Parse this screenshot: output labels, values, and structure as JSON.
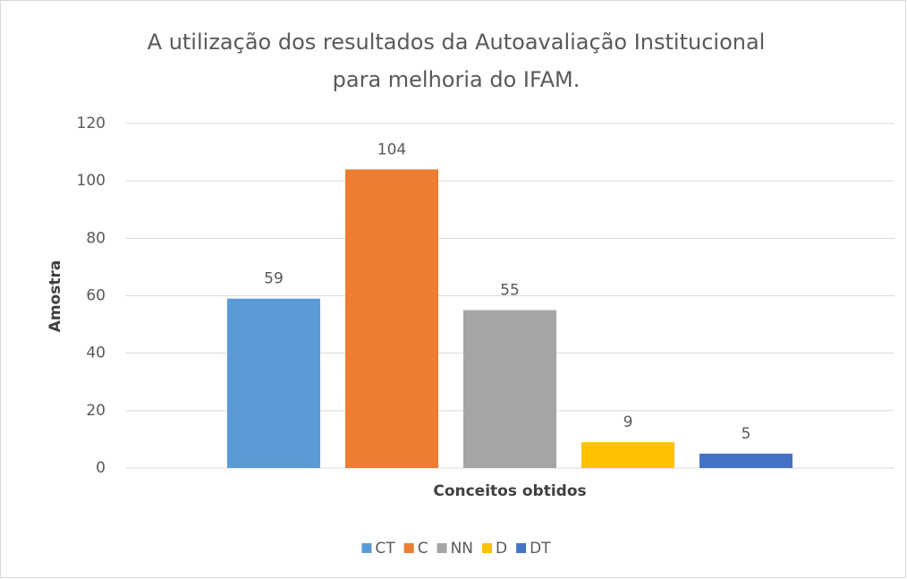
{
  "chart_data": {
    "type": "bar",
    "title": [
      "A utilização dos resultados da Autoavaliação Institucional",
      "para melhoria do IFAM."
    ],
    "x_label": "Conceitos obtidos",
    "y_label": "Amostra",
    "categories": [
      null
    ],
    "series": [
      {
        "name": "CT",
        "color": "#5b9bd5",
        "values": [
          59
        ]
      },
      {
        "name": "C",
        "color": "#ed7d31",
        "values": [
          104
        ]
      },
      {
        "name": "NN",
        "color": "#a5a5a5",
        "values": [
          55
        ]
      },
      {
        "name": "D",
        "color": "#ffc000",
        "values": [
          9
        ]
      },
      {
        "name": "DT",
        "color": "#4472c4",
        "values": [
          5
        ]
      }
    ],
    "ylim": [
      0,
      120
    ],
    "yticks": [
      0,
      20,
      40,
      60,
      80,
      100,
      120
    ],
    "grid": true,
    "legend": "bottom"
  }
}
